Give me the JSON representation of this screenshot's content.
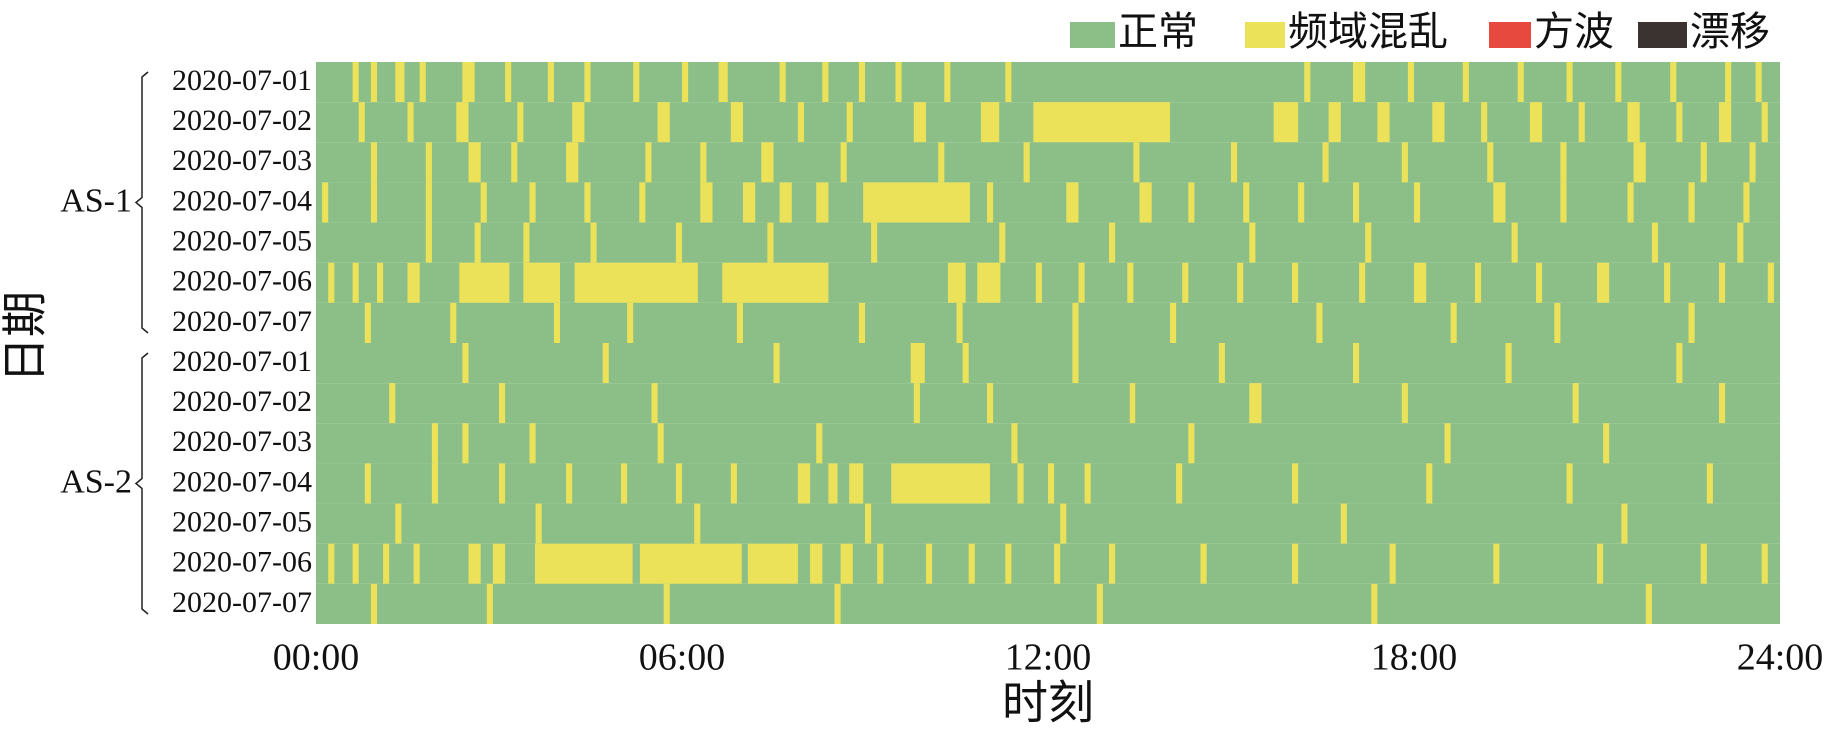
{
  "chart_data": {
    "type": "timeline",
    "xlabel": "时刻",
    "ylabel": "日期",
    "xlim": [
      0,
      24
    ],
    "xticks": [
      {
        "value": 0,
        "label": "00:00"
      },
      {
        "value": 6,
        "label": "06:00"
      },
      {
        "value": 12,
        "label": "12:00"
      },
      {
        "value": 18,
        "label": "18:00"
      },
      {
        "value": 24,
        "label": "24:00"
      }
    ],
    "legend": [
      {
        "name": "正常",
        "color": "#8cbf87"
      },
      {
        "name": "频域混乱",
        "color": "#ece25a"
      },
      {
        "name": "方波",
        "color": "#e8493f"
      },
      {
        "name": "漂移",
        "color": "#3b3330"
      }
    ],
    "groups": [
      {
        "label": "AS-1",
        "rows": [
          {
            "date": "2020-07-01",
            "intervals": [
              [
                0.6,
                0.7
              ],
              [
                0.9,
                1.0
              ],
              [
                1.3,
                1.45
              ],
              [
                1.7,
                1.8
              ],
              [
                2.4,
                2.6
              ],
              [
                3.1,
                3.2
              ],
              [
                3.8,
                3.9
              ],
              [
                4.4,
                4.5
              ],
              [
                5.2,
                5.3
              ],
              [
                6.0,
                6.1
              ],
              [
                6.6,
                6.75
              ],
              [
                7.6,
                7.7
              ],
              [
                8.3,
                8.4
              ],
              [
                8.9,
                9.0
              ],
              [
                9.5,
                9.6
              ],
              [
                10.3,
                10.4
              ],
              [
                11.3,
                11.4
              ],
              [
                16.2,
                16.3
              ],
              [
                17.0,
                17.2
              ],
              [
                17.9,
                18.0
              ],
              [
                18.8,
                18.9
              ],
              [
                19.7,
                19.8
              ],
              [
                20.5,
                20.6
              ],
              [
                21.3,
                21.4
              ],
              [
                22.2,
                22.3
              ],
              [
                23.1,
                23.2
              ],
              [
                23.6,
                23.7
              ]
            ]
          },
          {
            "date": "2020-07-02",
            "intervals": [
              [
                0.7,
                0.8
              ],
              [
                1.5,
                1.6
              ],
              [
                2.3,
                2.5
              ],
              [
                3.3,
                3.4
              ],
              [
                4.2,
                4.4
              ],
              [
                5.6,
                5.8
              ],
              [
                6.8,
                7.0
              ],
              [
                7.9,
                8.0
              ],
              [
                8.7,
                8.8
              ],
              [
                9.8,
                10.0
              ],
              [
                10.9,
                11.2
              ],
              [
                11.76,
                14.0
              ],
              [
                15.7,
                16.1
              ],
              [
                16.6,
                16.8
              ],
              [
                17.4,
                17.6
              ],
              [
                18.3,
                18.5
              ],
              [
                19.1,
                19.2
              ],
              [
                19.9,
                20.1
              ],
              [
                20.7,
                20.8
              ],
              [
                21.5,
                21.7
              ],
              [
                22.3,
                22.4
              ],
              [
                23.0,
                23.2
              ],
              [
                23.7,
                23.8
              ]
            ]
          },
          {
            "date": "2020-07-03",
            "intervals": [
              [
                0.9,
                1.0
              ],
              [
                1.8,
                1.9
              ],
              [
                2.5,
                2.7
              ],
              [
                3.2,
                3.3
              ],
              [
                4.1,
                4.3
              ],
              [
                5.4,
                5.5
              ],
              [
                6.3,
                6.4
              ],
              [
                7.3,
                7.5
              ],
              [
                8.6,
                8.7
              ],
              [
                10.2,
                10.3
              ],
              [
                11.6,
                11.7
              ],
              [
                13.4,
                13.5
              ],
              [
                15.0,
                15.1
              ],
              [
                16.5,
                16.6
              ],
              [
                17.8,
                17.9
              ],
              [
                19.2,
                19.3
              ],
              [
                20.4,
                20.5
              ],
              [
                21.6,
                21.8
              ],
              [
                22.7,
                22.8
              ],
              [
                23.5,
                23.6
              ]
            ]
          },
          {
            "date": "2020-07-04",
            "intervals": [
              [
                0.1,
                0.2
              ],
              [
                0.9,
                1.0
              ],
              [
                1.8,
                1.9
              ],
              [
                2.7,
                2.8
              ],
              [
                3.5,
                3.6
              ],
              [
                4.4,
                4.5
              ],
              [
                5.3,
                5.4
              ],
              [
                6.3,
                6.5
              ],
              [
                7.0,
                7.2
              ],
              [
                7.6,
                7.8
              ],
              [
                8.2,
                8.4
              ],
              [
                8.97,
                10.72
              ],
              [
                11.0,
                11.1
              ],
              [
                12.3,
                12.5
              ],
              [
                13.5,
                13.7
              ],
              [
                14.3,
                14.4
              ],
              [
                15.2,
                15.3
              ],
              [
                16.1,
                16.2
              ],
              [
                17.0,
                17.1
              ],
              [
                18.0,
                18.1
              ],
              [
                19.3,
                19.5
              ],
              [
                20.4,
                20.5
              ],
              [
                21.5,
                21.6
              ],
              [
                22.5,
                22.6
              ],
              [
                23.4,
                23.5
              ]
            ]
          },
          {
            "date": "2020-07-05",
            "intervals": [
              [
                1.8,
                1.9
              ],
              [
                2.6,
                2.7
              ],
              [
                3.4,
                3.5
              ],
              [
                4.5,
                4.6
              ],
              [
                5.9,
                6.0
              ],
              [
                7.4,
                7.5
              ],
              [
                9.1,
                9.2
              ],
              [
                11.2,
                11.3
              ],
              [
                13.0,
                13.1
              ],
              [
                15.3,
                15.4
              ],
              [
                17.2,
                17.3
              ],
              [
                19.6,
                19.7
              ],
              [
                21.9,
                22.0
              ],
              [
                23.3,
                23.4
              ]
            ]
          },
          {
            "date": "2020-07-06",
            "intervals": [
              [
                0.2,
                0.3
              ],
              [
                0.6,
                0.7
              ],
              [
                1.0,
                1.1
              ],
              [
                1.5,
                1.7
              ],
              [
                2.35,
                3.17
              ],
              [
                3.4,
                4.0
              ],
              [
                4.24,
                6.26
              ],
              [
                6.66,
                8.4
              ],
              [
                10.36,
                10.65
              ],
              [
                10.84,
                11.22
              ],
              [
                11.8,
                11.9
              ],
              [
                12.5,
                12.6
              ],
              [
                13.3,
                13.4
              ],
              [
                14.2,
                14.3
              ],
              [
                15.1,
                15.2
              ],
              [
                16.0,
                16.1
              ],
              [
                17.1,
                17.2
              ],
              [
                18.0,
                18.2
              ],
              [
                19.0,
                19.1
              ],
              [
                20.0,
                20.1
              ],
              [
                21.0,
                21.2
              ],
              [
                22.1,
                22.2
              ],
              [
                23.0,
                23.1
              ],
              [
                23.8,
                23.9
              ]
            ]
          },
          {
            "date": "2020-07-07",
            "intervals": [
              [
                0.8,
                0.9
              ],
              [
                2.2,
                2.3
              ],
              [
                3.9,
                4.0
              ],
              [
                5.1,
                5.2
              ],
              [
                6.9,
                7.0
              ],
              [
                8.9,
                9.0
              ],
              [
                10.5,
                10.6
              ],
              [
                12.4,
                12.5
              ],
              [
                14.0,
                14.1
              ],
              [
                16.4,
                16.5
              ],
              [
                18.6,
                18.7
              ],
              [
                20.3,
                20.4
              ],
              [
                22.5,
                22.6
              ]
            ]
          }
        ]
      },
      {
        "label": "AS-2",
        "rows": [
          {
            "date": "2020-07-01",
            "intervals": [
              [
                2.4,
                2.5
              ],
              [
                4.7,
                4.8
              ],
              [
                7.5,
                7.6
              ],
              [
                9.75,
                9.98
              ],
              [
                10.6,
                10.7
              ],
              [
                12.4,
                12.5
              ],
              [
                14.8,
                14.9
              ],
              [
                17.0,
                17.1
              ],
              [
                19.5,
                19.6
              ],
              [
                22.3,
                22.4
              ]
            ]
          },
          {
            "date": "2020-07-02",
            "intervals": [
              [
                1.2,
                1.3
              ],
              [
                3.0,
                3.1
              ],
              [
                5.5,
                5.6
              ],
              [
                9.8,
                9.9
              ],
              [
                11.0,
                11.1
              ],
              [
                13.34,
                13.43
              ],
              [
                15.3,
                15.5
              ],
              [
                17.8,
                17.9
              ],
              [
                20.6,
                20.7
              ],
              [
                23.0,
                23.1
              ]
            ]
          },
          {
            "date": "2020-07-03",
            "intervals": [
              [
                1.9,
                2.0
              ],
              [
                2.4,
                2.5
              ],
              [
                3.5,
                3.6
              ],
              [
                5.6,
                5.7
              ],
              [
                8.2,
                8.3
              ],
              [
                11.4,
                11.5
              ],
              [
                14.3,
                14.4
              ],
              [
                18.5,
                18.6
              ],
              [
                21.1,
                21.2
              ]
            ]
          },
          {
            "date": "2020-07-04",
            "intervals": [
              [
                0.8,
                0.9
              ],
              [
                1.9,
                2.0
              ],
              [
                3.0,
                3.1
              ],
              [
                4.1,
                4.2
              ],
              [
                5.0,
                5.1
              ],
              [
                5.9,
                6.0
              ],
              [
                6.8,
                6.9
              ],
              [
                7.9,
                8.1
              ],
              [
                8.4,
                8.55
              ],
              [
                8.74,
                8.97
              ],
              [
                9.43,
                11.05
              ],
              [
                11.5,
                11.6
              ],
              [
                12.0,
                12.1
              ],
              [
                12.6,
                12.7
              ],
              [
                14.1,
                14.2
              ],
              [
                16.0,
                16.1
              ],
              [
                18.2,
                18.3
              ],
              [
                20.5,
                20.6
              ],
              [
                22.8,
                22.9
              ]
            ]
          },
          {
            "date": "2020-07-05",
            "intervals": [
              [
                1.3,
                1.4
              ],
              [
                3.6,
                3.7
              ],
              [
                6.2,
                6.3
              ],
              [
                9.0,
                9.1
              ],
              [
                12.2,
                12.3
              ],
              [
                16.8,
                16.9
              ],
              [
                21.4,
                21.5
              ]
            ]
          },
          {
            "date": "2020-07-06",
            "intervals": [
              [
                0.2,
                0.3
              ],
              [
                0.6,
                0.7
              ],
              [
                1.1,
                1.2
              ],
              [
                1.6,
                1.7
              ],
              [
                2.5,
                2.7
              ],
              [
                2.9,
                3.1
              ],
              [
                3.59,
                5.19
              ],
              [
                5.31,
                6.98
              ],
              [
                7.08,
                7.9
              ],
              [
                8.1,
                8.3
              ],
              [
                8.6,
                8.8
              ],
              [
                9.2,
                9.3
              ],
              [
                10.0,
                10.1
              ],
              [
                10.7,
                10.8
              ],
              [
                11.3,
                11.4
              ],
              [
                12.1,
                12.2
              ],
              [
                13.0,
                13.1
              ],
              [
                14.5,
                14.6
              ],
              [
                16.0,
                16.1
              ],
              [
                17.6,
                17.7
              ],
              [
                19.3,
                19.4
              ],
              [
                21.0,
                21.1
              ],
              [
                22.7,
                22.8
              ],
              [
                23.7,
                23.8
              ]
            ]
          },
          {
            "date": "2020-07-07",
            "intervals": [
              [
                0.9,
                1.0
              ],
              [
                2.8,
                2.9
              ],
              [
                5.7,
                5.8
              ],
              [
                8.5,
                8.6
              ],
              [
                12.8,
                12.9
              ],
              [
                17.3,
                17.4
              ],
              [
                21.8,
                21.9
              ]
            ]
          }
        ]
      }
    ]
  }
}
